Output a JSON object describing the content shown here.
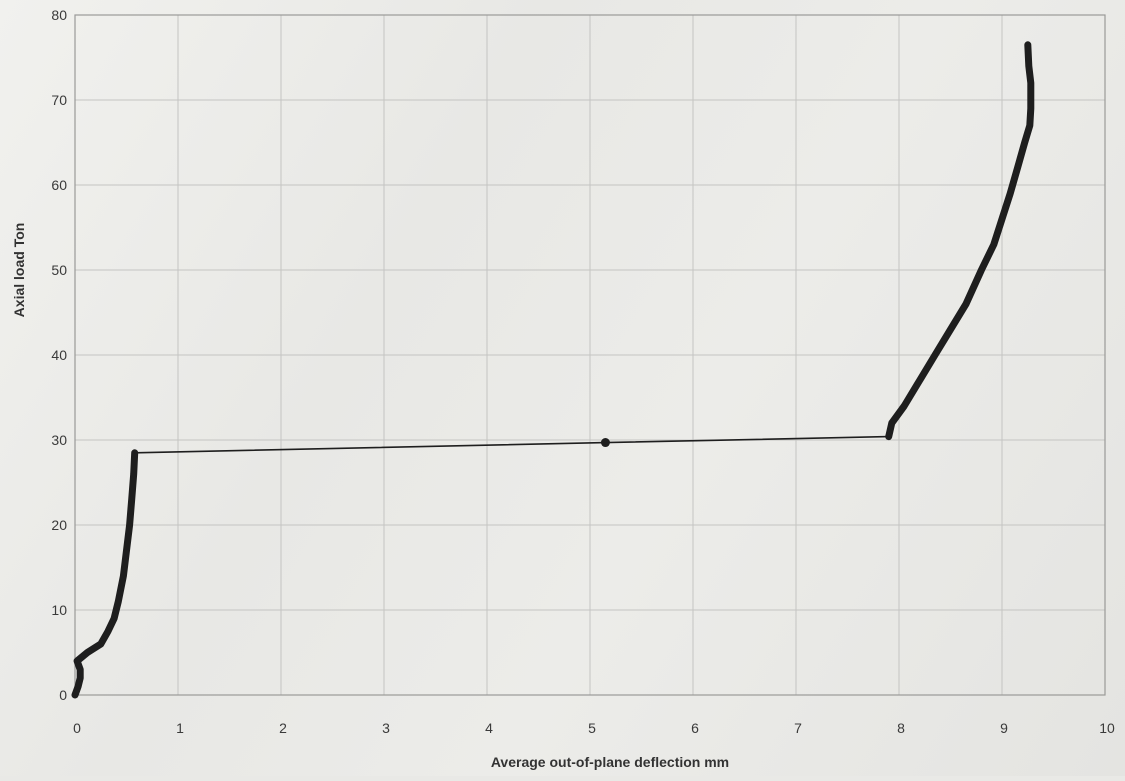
{
  "chart_data": {
    "type": "line",
    "title": "",
    "xlabel": "Average out-of-plane deflection  mm",
    "ylabel": "Axial load  Ton",
    "xlim": [
      0,
      10
    ],
    "ylim": [
      0,
      80
    ],
    "xticks": [
      0,
      1,
      2,
      3,
      4,
      5,
      6,
      7,
      8,
      9,
      10
    ],
    "yticks": [
      0,
      10,
      20,
      30,
      40,
      50,
      60,
      70,
      80
    ],
    "grid": true,
    "legend": "none",
    "colors": {
      "series": "#1e1e1e"
    },
    "series": [
      {
        "style": "thick",
        "points": [
          [
            0.0,
            0.0
          ],
          [
            0.03,
            1.0
          ],
          [
            0.05,
            2.0
          ],
          [
            0.05,
            3.0
          ],
          [
            0.02,
            4.0
          ],
          [
            0.12,
            5.0
          ],
          [
            0.25,
            6.0
          ],
          [
            0.32,
            7.5
          ],
          [
            0.38,
            9.0
          ],
          [
            0.42,
            11.0
          ],
          [
            0.47,
            14.0
          ],
          [
            0.5,
            17.0
          ],
          [
            0.53,
            20.0
          ],
          [
            0.55,
            23.0
          ],
          [
            0.57,
            26.0
          ],
          [
            0.58,
            28.5
          ]
        ]
      },
      {
        "style": "thin",
        "points": [
          [
            0.58,
            28.5
          ],
          [
            5.15,
            29.7
          ],
          [
            7.9,
            30.4
          ]
        ]
      },
      {
        "style": "thick",
        "points": [
          [
            7.9,
            30.4
          ],
          [
            7.93,
            32.0
          ],
          [
            8.05,
            34.0
          ],
          [
            8.2,
            37.0
          ],
          [
            8.35,
            40.0
          ],
          [
            8.5,
            43.0
          ],
          [
            8.65,
            46.0
          ],
          [
            8.8,
            50.0
          ],
          [
            8.92,
            53.0
          ],
          [
            9.0,
            56.0
          ],
          [
            9.08,
            59.0
          ],
          [
            9.15,
            62.0
          ],
          [
            9.22,
            65.0
          ],
          [
            9.27,
            67.0
          ],
          [
            9.28,
            69.0
          ],
          [
            9.28,
            72.0
          ],
          [
            9.26,
            74.0
          ],
          [
            9.25,
            76.5
          ]
        ]
      }
    ],
    "markers": [
      [
        5.15,
        29.7
      ]
    ]
  }
}
